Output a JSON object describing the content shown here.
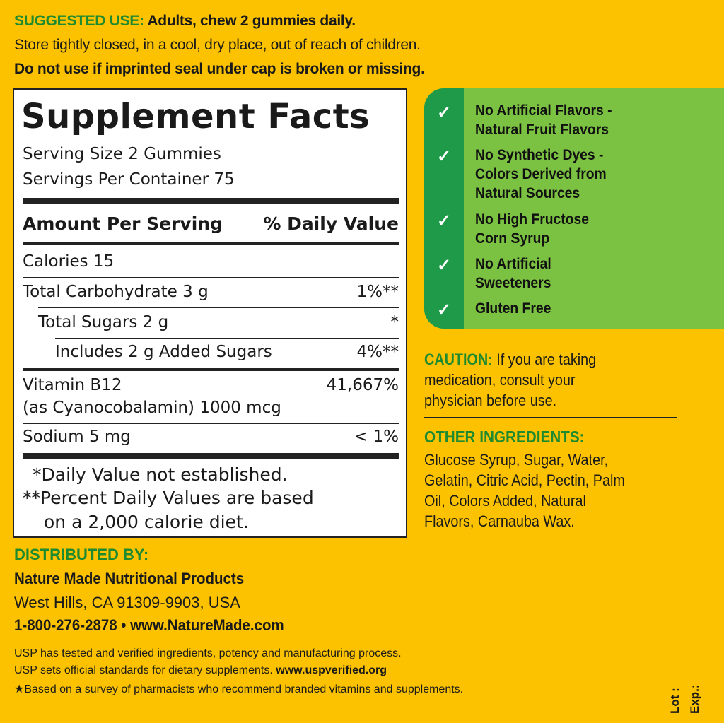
{
  "top": {
    "suggested_label": "SUGGESTED USE:",
    "suggested_text": " Adults, chew 2 gummies daily.",
    "store": "Store tightly closed, in a cool, dry place, out of reach of children.",
    "seal": "Do not use if imprinted seal under cap is broken or missing."
  },
  "facts": {
    "title": "Supplement Facts",
    "serving_size": "Serving Size 2 Gummies",
    "servings_per": "Servings Per Container 75",
    "amount_header": "Amount Per Serving",
    "dv_header": "% Daily Value",
    "rows": [
      {
        "name": "Calories  15",
        "dv": ""
      },
      {
        "name": "Total Carbohydrate  3 g",
        "dv": "1%**"
      },
      {
        "name": "Total Sugars  2 g",
        "dv": "*"
      },
      {
        "name": "Includes 2 g Added Sugars",
        "dv": "4%**"
      },
      {
        "name": "Vitamin B12",
        "name2": "(as Cyanocobalamin)  1000 mcg",
        "dv": "41,667%"
      },
      {
        "name": "Sodium  5 mg",
        "dv": "< 1%"
      }
    ],
    "foot1": "*Daily Value not established.",
    "foot2": "**Percent Daily Values are based",
    "foot3": "on a 2,000 calorie diet."
  },
  "claims": [
    {
      "lines": [
        "No Artificial Flavors -",
        "Natural Fruit Flavors"
      ]
    },
    {
      "lines": [
        "No Synthetic Dyes -",
        "Colors Derived from",
        "Natural Sources"
      ]
    },
    {
      "lines": [
        "No High Fructose",
        "Corn Syrup"
      ]
    },
    {
      "lines": [
        "No Artificial",
        "Sweeteners"
      ]
    },
    {
      "lines": [
        "Gluten Free"
      ]
    }
  ],
  "caution": {
    "label": "CAUTION:",
    "l1": " If you are taking",
    "l2": "medication, consult your",
    "l3": "physician before use."
  },
  "ingredients": {
    "label": "OTHER INGREDIENTS:",
    "lines": [
      "Glucose Syrup, Sugar, Water,",
      "Gelatin, Citric Acid, Pectin, Palm",
      "Oil, Colors Added, Natural",
      "Flavors, Carnauba Wax."
    ]
  },
  "distributed": {
    "label": "DISTRIBUTED BY:",
    "company": "Nature Made Nutritional Products",
    "address": "West Hills, CA 91309-9903, USA",
    "contact": "1-800-276-2878 • www.NatureMade.com"
  },
  "usp": {
    "l1": "USP has tested and verified ingredients, potency and manufacturing process.",
    "l2": "USP sets official standards for dietary supplements. ",
    "l2b": "www.uspverified.org",
    "l3": "★Based on a survey of pharmacists who recommend branded vitamins and supplements."
  },
  "lot": "Lot :",
  "exp": "Exp.:",
  "colors": {
    "background": "#fcc200",
    "heading_green": "#1f8a2e",
    "panel_light": "#7bc142",
    "panel_dark": "#1e9a48"
  },
  "icons": {
    "check": "✓"
  }
}
